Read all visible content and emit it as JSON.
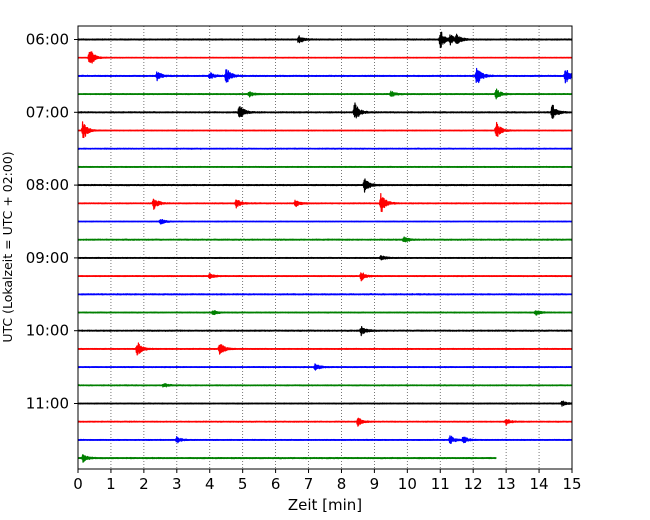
{
  "chart_data": {
    "type": "line",
    "chart_kind": "helicorder seismogram",
    "xlabel": "Zeit  [min]",
    "ylabel": "UTC (Lokalzeit = UTC + 02:00)",
    "xlim": [
      0,
      15
    ],
    "x_ticks": [
      0,
      1,
      2,
      3,
      4,
      5,
      6,
      7,
      8,
      9,
      10,
      11,
      12,
      13,
      14,
      15
    ],
    "x_tick_labels": [
      "0",
      "1",
      "2",
      "3",
      "4",
      "5",
      "6",
      "7",
      "8",
      "9",
      "10",
      "11",
      "12",
      "13",
      "14",
      "15"
    ],
    "grid": "vertical dotted at each minute",
    "trace_interval_min": 15,
    "row_labels": [
      {
        "row": 0,
        "label": "06:00"
      },
      {
        "row": 4,
        "label": "07:00"
      },
      {
        "row": 8,
        "label": "08:00"
      },
      {
        "row": 12,
        "label": "09:00"
      },
      {
        "row": 16,
        "label": "10:00"
      },
      {
        "row": 20,
        "label": "11:00"
      }
    ],
    "trace_colors": [
      "#000000",
      "#ff0000",
      "#0000ff",
      "#008000"
    ],
    "rows": [
      {
        "start": "06:00",
        "color": "#000000",
        "noise": 0.5,
        "end_min": 15,
        "events": [
          [
            6.7,
            0.9
          ],
          [
            11.0,
            2.2
          ],
          [
            11.3,
            1.0
          ],
          [
            11.5,
            1.0
          ]
        ]
      },
      {
        "start": "06:15",
        "color": "#ff0000",
        "noise": 0.3,
        "end_min": 15,
        "events": [
          [
            0.35,
            2.4
          ]
        ]
      },
      {
        "start": "06:30",
        "color": "#0000ff",
        "noise": 0.5,
        "end_min": 15,
        "events": [
          [
            2.4,
            1.0
          ],
          [
            4.0,
            0.8
          ],
          [
            4.5,
            1.9
          ],
          [
            12.1,
            2.6
          ],
          [
            14.8,
            2.0
          ]
        ]
      },
      {
        "start": "06:45",
        "color": "#008000",
        "noise": 0.4,
        "end_min": 15,
        "events": [
          [
            5.2,
            0.6
          ],
          [
            9.5,
            0.7
          ],
          [
            12.7,
            1.2
          ]
        ]
      },
      {
        "start": "07:00",
        "color": "#000000",
        "noise": 0.5,
        "end_min": 15,
        "events": [
          [
            4.9,
            1.8
          ],
          [
            8.4,
            2.2
          ],
          [
            14.4,
            1.8
          ]
        ]
      },
      {
        "start": "07:15",
        "color": "#ff0000",
        "noise": 0.3,
        "end_min": 15,
        "events": [
          [
            0.15,
            2.4
          ],
          [
            12.7,
            2.0
          ]
        ]
      },
      {
        "start": "07:30",
        "color": "#0000ff",
        "noise": 0.4,
        "end_min": 15,
        "events": []
      },
      {
        "start": "07:45",
        "color": "#008000",
        "noise": 0.4,
        "end_min": 15,
        "events": []
      },
      {
        "start": "08:00",
        "color": "#000000",
        "noise": 0.5,
        "end_min": 15,
        "events": [
          [
            8.7,
            1.8
          ]
        ]
      },
      {
        "start": "08:15",
        "color": "#ff0000",
        "noise": 0.4,
        "end_min": 15,
        "events": [
          [
            2.3,
            1.4
          ],
          [
            4.8,
            1.2
          ],
          [
            6.6,
            0.9
          ],
          [
            9.2,
            2.6
          ]
        ]
      },
      {
        "start": "08:30",
        "color": "#0000ff",
        "noise": 0.3,
        "end_min": 15,
        "events": [
          [
            2.5,
            0.7
          ]
        ]
      },
      {
        "start": "08:45",
        "color": "#008000",
        "noise": 0.5,
        "end_min": 15,
        "events": [
          [
            9.9,
            0.8
          ]
        ]
      },
      {
        "start": "09:00",
        "color": "#000000",
        "noise": 0.4,
        "end_min": 15,
        "events": [
          [
            9.2,
            0.6
          ]
        ]
      },
      {
        "start": "09:15",
        "color": "#ff0000",
        "noise": 0.4,
        "end_min": 15,
        "events": [
          [
            4.0,
            0.6
          ],
          [
            8.6,
            1.0
          ]
        ]
      },
      {
        "start": "09:30",
        "color": "#0000ff",
        "noise": 0.5,
        "end_min": 15,
        "events": []
      },
      {
        "start": "09:45",
        "color": "#008000",
        "noise": 0.4,
        "end_min": 15,
        "events": [
          [
            4.1,
            0.6
          ],
          [
            13.9,
            0.6
          ]
        ]
      },
      {
        "start": "10:00",
        "color": "#000000",
        "noise": 0.5,
        "end_min": 15,
        "events": [
          [
            8.6,
            1.0
          ]
        ]
      },
      {
        "start": "10:15",
        "color": "#ff0000",
        "noise": 0.4,
        "end_min": 15,
        "events": [
          [
            1.8,
            1.7
          ],
          [
            4.3,
            1.6
          ]
        ]
      },
      {
        "start": "10:30",
        "color": "#0000ff",
        "noise": 0.4,
        "end_min": 15,
        "events": [
          [
            7.2,
            0.8
          ]
        ]
      },
      {
        "start": "10:45",
        "color": "#008000",
        "noise": 0.4,
        "end_min": 15,
        "events": [
          [
            2.6,
            0.5
          ]
        ]
      },
      {
        "start": "11:00",
        "color": "#000000",
        "noise": 0.4,
        "end_min": 15,
        "events": [
          [
            14.7,
            0.6
          ]
        ]
      },
      {
        "start": "11:15",
        "color": "#ff0000",
        "noise": 0.4,
        "end_min": 15,
        "events": [
          [
            8.5,
            1.0
          ],
          [
            13.0,
            0.8
          ]
        ]
      },
      {
        "start": "11:30",
        "color": "#0000ff",
        "noise": 0.4,
        "end_min": 15,
        "events": [
          [
            3.0,
            0.7
          ],
          [
            11.3,
            1.0
          ],
          [
            11.7,
            0.8
          ]
        ]
      },
      {
        "start": "11:45",
        "color": "#008000",
        "noise": 0.5,
        "end_min": 12.7,
        "events": [
          [
            0.15,
            0.9
          ]
        ]
      }
    ]
  }
}
